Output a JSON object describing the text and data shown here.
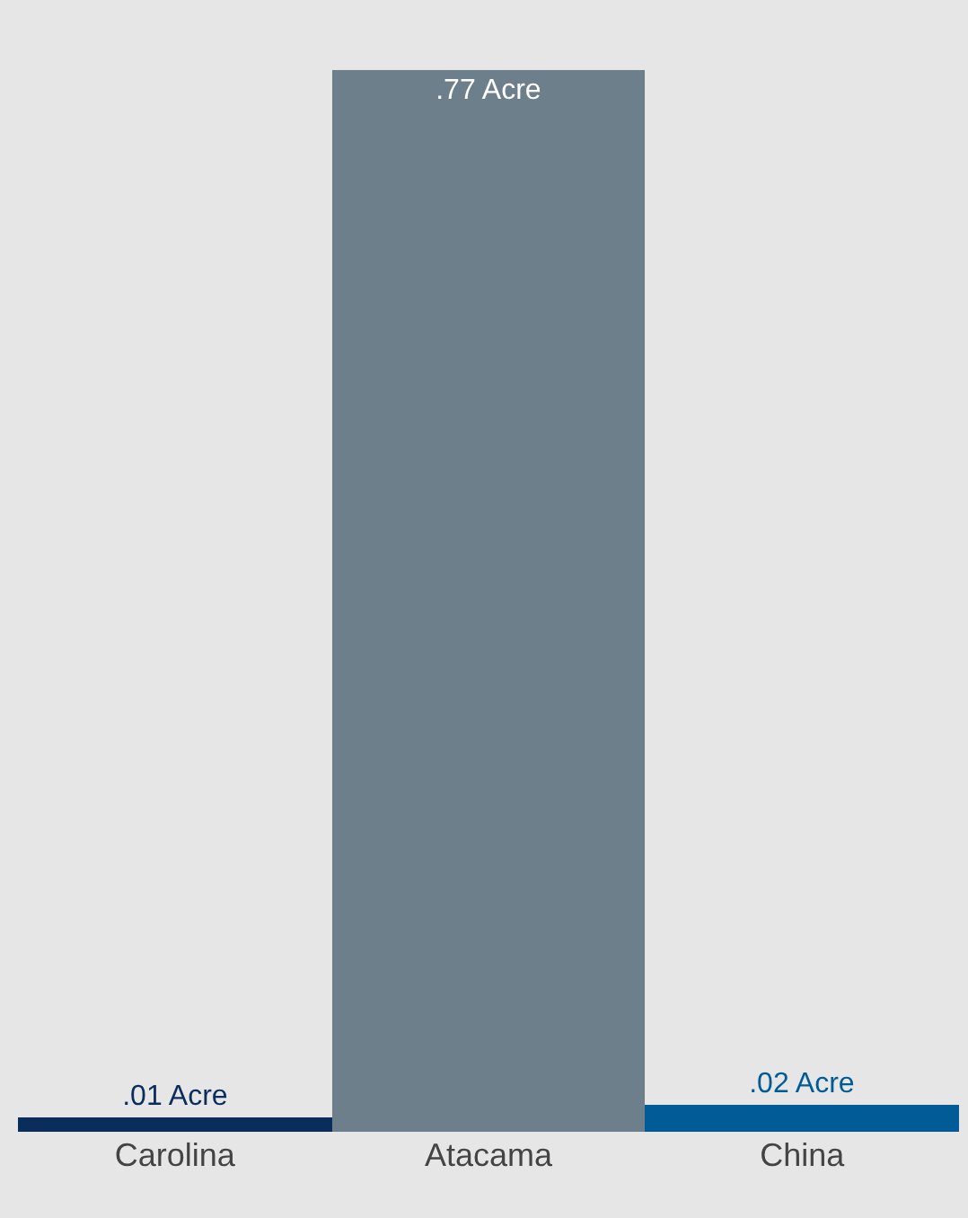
{
  "chart_data": {
    "type": "bar",
    "categories": [
      "Carolina",
      "Atacama",
      "China"
    ],
    "values": [
      0.01,
      0.77,
      0.02
    ],
    "colors": [
      "#0b2d5b",
      "#6e7f8c",
      "#005b96"
    ],
    "value_labels": [
      ".01 Acre",
      ".77 Acre",
      ".02 Acre"
    ],
    "tick_labels": "x"
  }
}
